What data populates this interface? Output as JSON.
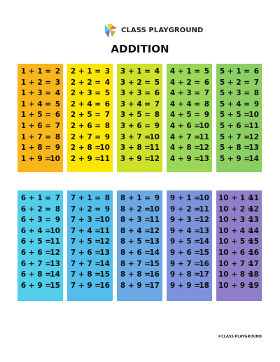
{
  "header": {
    "brand": "CLASS PLAYGROUND",
    "title": "ADDITION",
    "logo_icon": "colorful-pinwheel-logo"
  },
  "footer": {
    "copyright": "©CLASS PLAYGROUND"
  },
  "tables": [
    {
      "color": "#f8b61a",
      "rows": [
        [
          "1 + 1 =",
          "2"
        ],
        [
          "1 + 2 =",
          "3"
        ],
        [
          "1 + 3 =",
          "4"
        ],
        [
          "1 + 4 =",
          "5"
        ],
        [
          "1 + 5 =",
          "6"
        ],
        [
          "1 + 6 =",
          "7"
        ],
        [
          "1 + 7 =",
          "8"
        ],
        [
          "1 + 8 =",
          "9"
        ],
        [
          "1 + 9 =",
          "10"
        ]
      ]
    },
    {
      "color": "#fde500",
      "rows": [
        [
          "2 + 1 =",
          "3"
        ],
        [
          "2 + 2 =",
          "4"
        ],
        [
          "2 + 3 =",
          "5"
        ],
        [
          "2 + 4 =",
          "6"
        ],
        [
          "2 + 5 =",
          "7"
        ],
        [
          "2 + 6 =",
          "8"
        ],
        [
          "2 + 7 =",
          "9"
        ],
        [
          "2 + 8 =",
          "10"
        ],
        [
          "2 + 9 =",
          "11"
        ]
      ]
    },
    {
      "color": "#cde02a",
      "rows": [
        [
          "3 + 1 =",
          "4"
        ],
        [
          "3 + 2 =",
          "5"
        ],
        [
          "3 + 3 =",
          "6"
        ],
        [
          "3 + 4 =",
          "7"
        ],
        [
          "3 + 5 =",
          "8"
        ],
        [
          "3 + 6 =",
          "9"
        ],
        [
          "3 + 7 =",
          "10"
        ],
        [
          "3 + 8 =",
          "11"
        ],
        [
          "3 + 9 =",
          "12"
        ]
      ]
    },
    {
      "color": "#9ad657",
      "rows": [
        [
          "4 + 1 =",
          "5"
        ],
        [
          "4 + 2 =",
          "6"
        ],
        [
          "4 + 3 =",
          "7"
        ],
        [
          "4 + 4 =",
          "8"
        ],
        [
          "4 + 5 =",
          "9"
        ],
        [
          "4 + 6 =",
          "10"
        ],
        [
          "4 + 7 =",
          "11"
        ],
        [
          "4 + 8 =",
          "12"
        ],
        [
          "4 + 9 =",
          "13"
        ]
      ]
    },
    {
      "color": "#8cce62",
      "rows": [
        [
          "5 + 1 =",
          "6"
        ],
        [
          "5 + 2 =",
          "7"
        ],
        [
          "5 + 3 =",
          "8"
        ],
        [
          "5 + 4 =",
          "9"
        ],
        [
          "5 + 5 =",
          "10"
        ],
        [
          "5 + 6 =",
          "11"
        ],
        [
          "5 + 7 =",
          "12"
        ],
        [
          "5 + 8 =",
          "13"
        ],
        [
          "5 + 9 =",
          "14"
        ]
      ]
    },
    {
      "color": "#52cdea",
      "rows": [
        [
          "6 + 1 =",
          "7"
        ],
        [
          "6 + 2 =",
          "8"
        ],
        [
          "6 + 3 =",
          "9"
        ],
        [
          "6 + 4 =",
          "10"
        ],
        [
          "6 + 5 =",
          "11"
        ],
        [
          "6 + 6 =",
          "12"
        ],
        [
          "6 + 7 =",
          "13"
        ],
        [
          "6 + 8 =",
          "14"
        ],
        [
          "6 + 9 =",
          "15"
        ]
      ]
    },
    {
      "color": "#52bdea",
      "rows": [
        [
          "7 + 1 =",
          "8"
        ],
        [
          "7 + 2 =",
          "9"
        ],
        [
          "7 + 3 =",
          "10"
        ],
        [
          "7 + 4 =",
          "11"
        ],
        [
          "7 + 5 =",
          "12"
        ],
        [
          "7 + 6 =",
          "13"
        ],
        [
          "7 + 7 =",
          "14"
        ],
        [
          "7 + 8 =",
          "15"
        ],
        [
          "7 + 9 =",
          "16"
        ]
      ]
    },
    {
      "color": "#6aa9e4",
      "rows": [
        [
          "8 + 1 =",
          "9"
        ],
        [
          "8 + 2 =",
          "10"
        ],
        [
          "8 + 3 =",
          "11"
        ],
        [
          "8 + 4 =",
          "12"
        ],
        [
          "8 + 5 =",
          "13"
        ],
        [
          "8 + 6 =",
          "14"
        ],
        [
          "8 + 7 =",
          "15"
        ],
        [
          "8 + 8 =",
          "16"
        ],
        [
          "8 + 9 =",
          "17"
        ]
      ]
    },
    {
      "color": "#7c93dc",
      "rows": [
        [
          "9 + 1 =",
          "10"
        ],
        [
          "9 + 2 =",
          "11"
        ],
        [
          "9 + 3 =",
          "12"
        ],
        [
          "9 + 4 =",
          "13"
        ],
        [
          "9 + 5 =",
          "14"
        ],
        [
          "9 + 6 =",
          "15"
        ],
        [
          "9 + 7 =",
          "16"
        ],
        [
          "9 + 8 =",
          "17"
        ],
        [
          "9 + 9 =",
          "18"
        ]
      ]
    },
    {
      "color": "#8f7ec8",
      "rows": [
        [
          "10 + 1 =",
          "11"
        ],
        [
          "10 + 2 =",
          "12"
        ],
        [
          "10 + 3 =",
          "13"
        ],
        [
          "10 + 4 =",
          "14"
        ],
        [
          "10 + 5 =",
          "15"
        ],
        [
          "10 + 6 =",
          "16"
        ],
        [
          "10 + 7 =",
          "17"
        ],
        [
          "10 + 8 =",
          "18"
        ],
        [
          "10 + 9 =",
          "19"
        ]
      ]
    }
  ]
}
